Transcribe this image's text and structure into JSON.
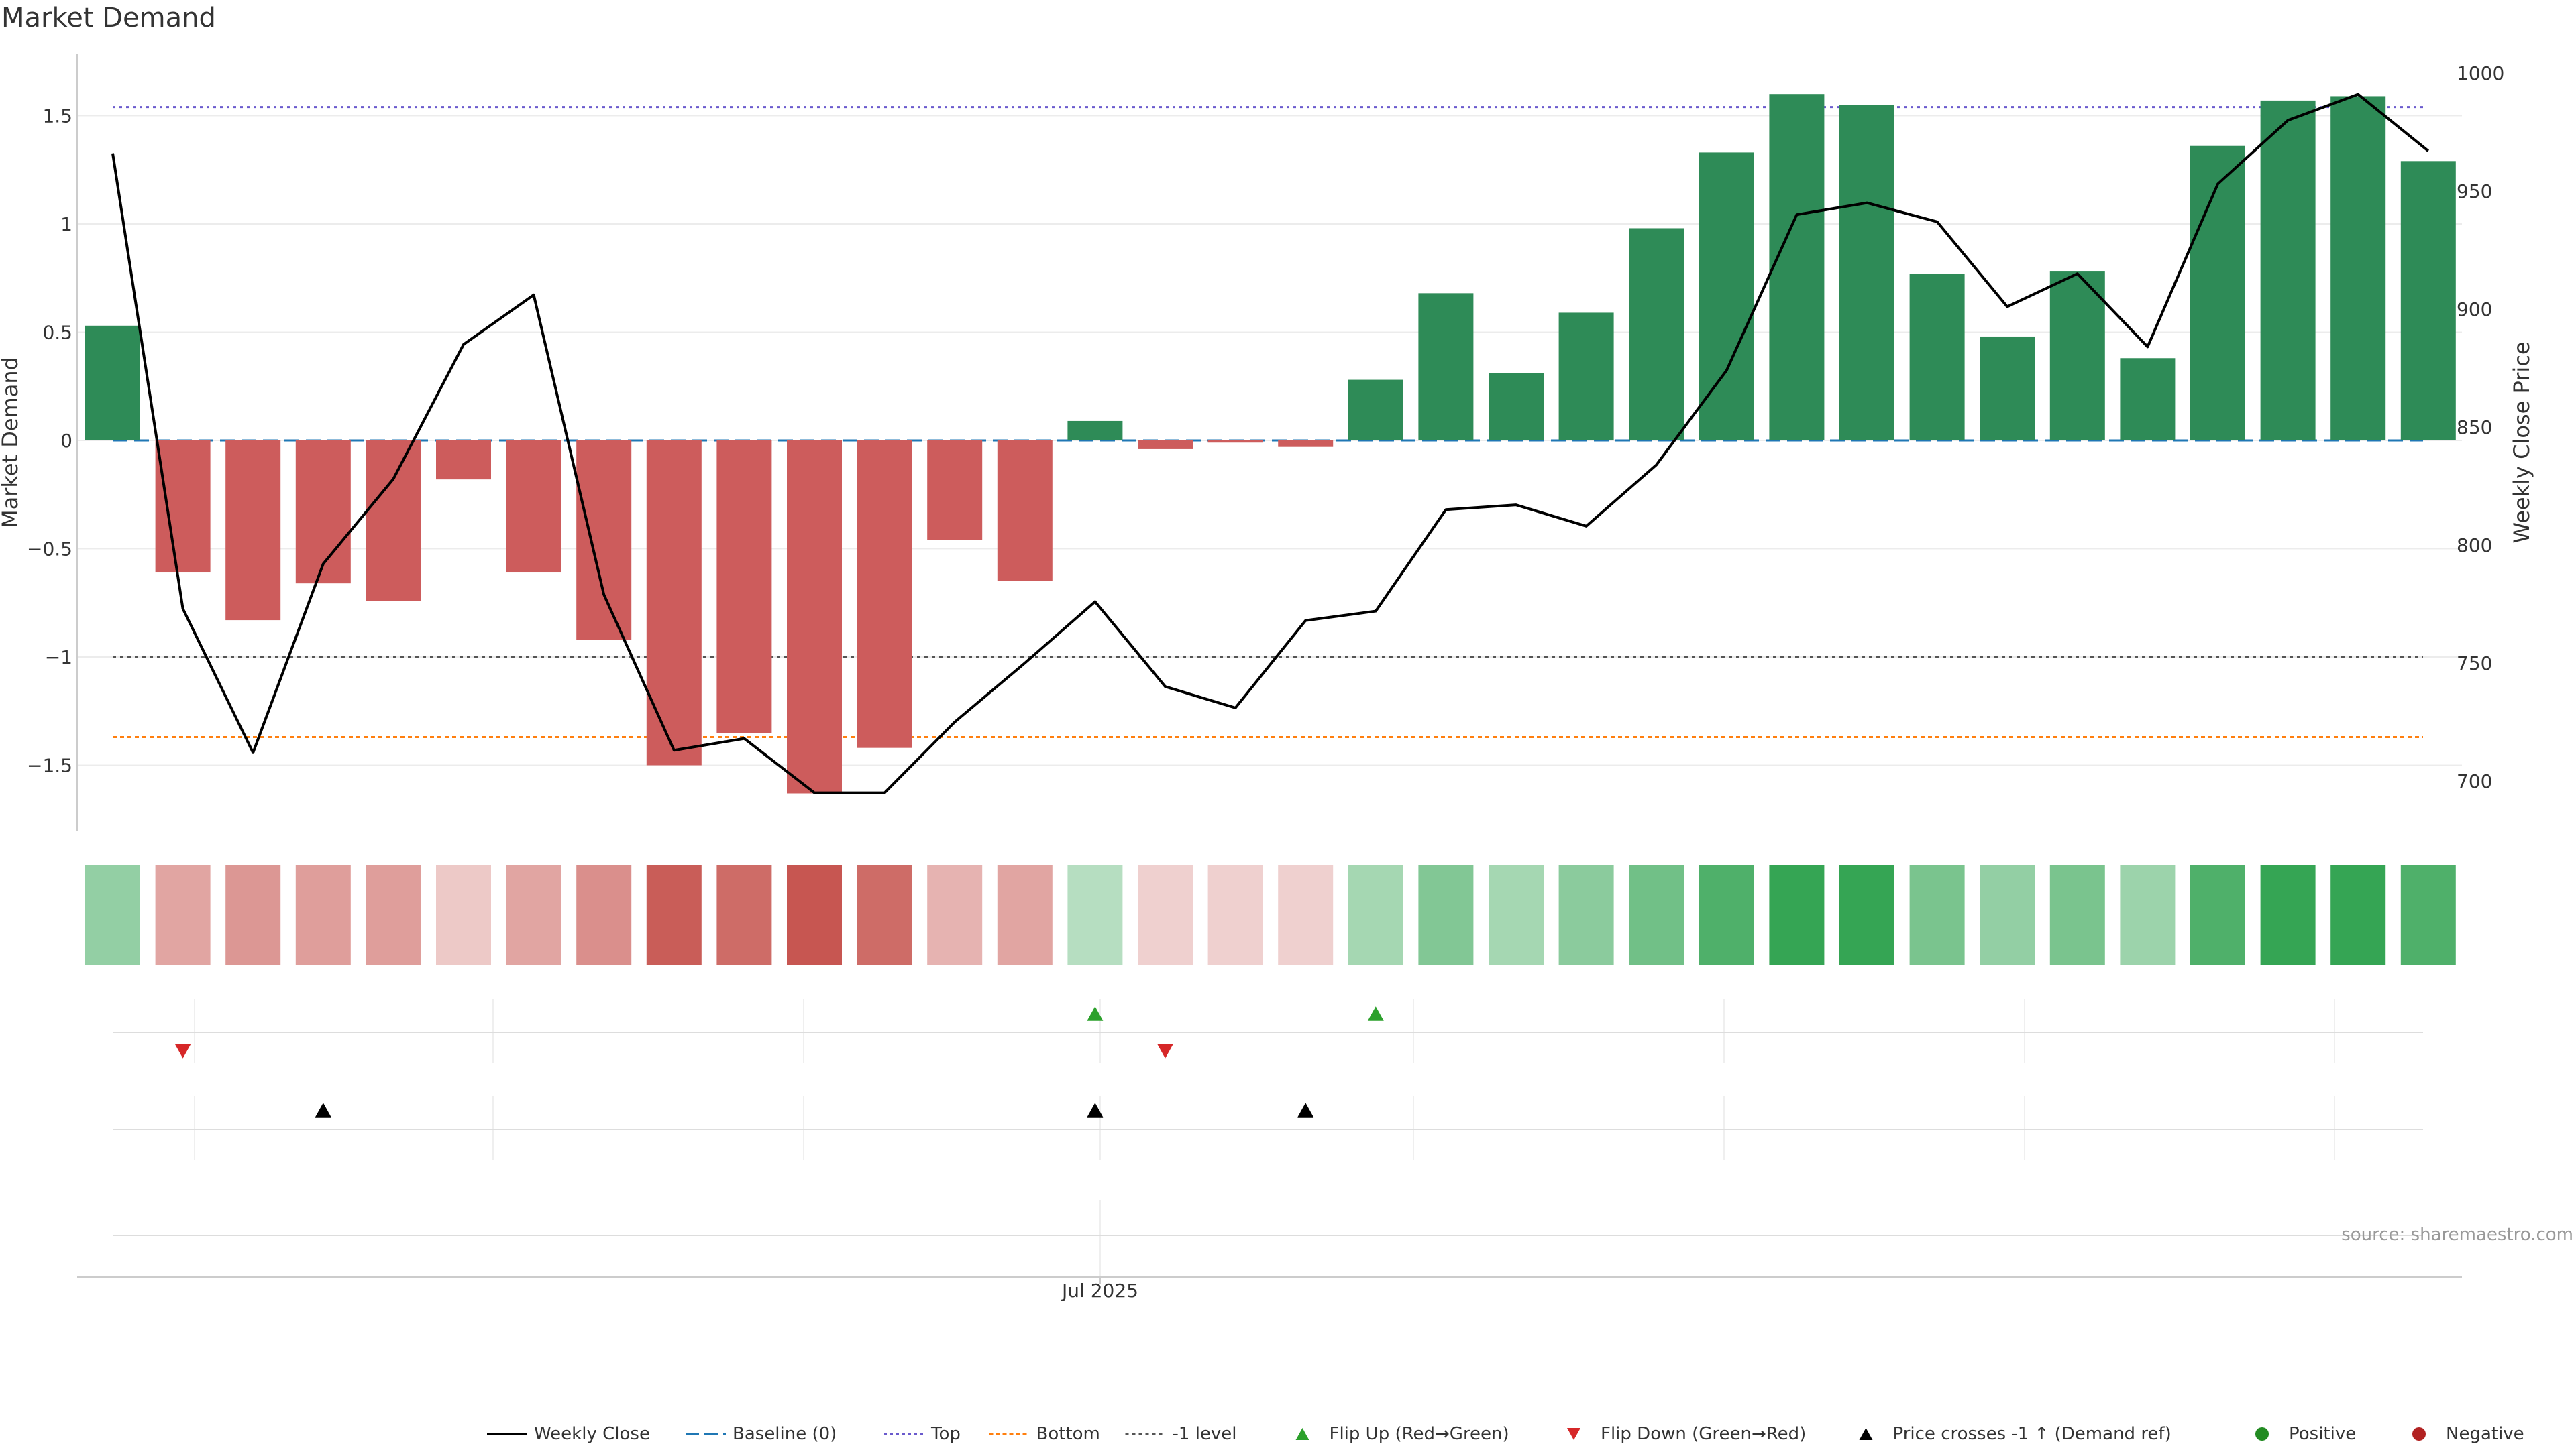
{
  "chart_data": {
    "type": "bar",
    "title": "Market Demand",
    "ylabel_left": "Market Demand",
    "ylabel_right": "Weekly Close Price",
    "ylim_left": [
      -1.8,
      1.78
    ],
    "ylim_right": [
      681,
      1015
    ],
    "yticks_left": [
      {
        "value": 1.5,
        "label": "1.5"
      },
      {
        "value": 1,
        "label": "1"
      },
      {
        "value": 0.5,
        "label": "0.5"
      },
      {
        "value": 0,
        "label": "0"
      },
      {
        "value": -0.5,
        "label": "−0.5"
      },
      {
        "value": -1,
        "label": "−1"
      },
      {
        "value": -1.5,
        "label": "−1.5"
      }
    ],
    "yticks_right": [
      {
        "value": 1000,
        "label": "1000"
      },
      {
        "value": 950,
        "label": "950"
      },
      {
        "value": 900,
        "label": "900"
      },
      {
        "value": 850,
        "label": "850"
      },
      {
        "value": 800,
        "label": "800"
      },
      {
        "value": 750,
        "label": "750"
      },
      {
        "value": 700,
        "label": "700"
      }
    ],
    "reference_lines": {
      "top": 1.54,
      "bottom": -1.37,
      "minus_one": -1.0,
      "baseline": 0
    },
    "demand": [
      0.53,
      -0.61,
      -0.83,
      -0.66,
      -0.74,
      -0.18,
      -0.61,
      -0.92,
      -1.5,
      -1.35,
      -1.63,
      -1.42,
      -0.46,
      -0.65,
      0.09,
      -0.04,
      -0.01,
      -0.03,
      0.28,
      0.68,
      0.31,
      0.59,
      0.98,
      1.33,
      1.6,
      1.55,
      0.77,
      0.48,
      0.78,
      0.38,
      1.36,
      1.57,
      1.59,
      1.29
    ],
    "weekly_close": [
      966,
      773,
      712,
      792,
      828,
      885,
      906,
      779,
      713,
      718,
      695,
      695,
      725,
      750,
      776,
      740,
      731,
      768,
      772,
      815,
      817,
      808,
      834,
      874,
      940,
      945,
      937,
      901,
      915,
      884,
      953,
      980,
      991,
      967
    ],
    "intensity_strip": [
      0.45,
      -0.45,
      -0.55,
      -0.5,
      -0.5,
      -0.2,
      -0.45,
      -0.6,
      -0.95,
      -0.85,
      -1.0,
      -0.85,
      -0.35,
      -0.45,
      0.25,
      -0.15,
      -0.15,
      -0.15,
      0.35,
      0.55,
      0.35,
      0.5,
      0.65,
      0.85,
      1.0,
      1.0,
      0.6,
      0.45,
      0.6,
      0.4,
      0.85,
      1.0,
      1.0,
      0.85
    ],
    "flip_up_weeks": [
      14,
      18
    ],
    "flip_down_weeks": [
      1,
      15
    ],
    "price_cross_weeks": [
      3,
      14,
      17
    ],
    "xtick": {
      "label": "Jul 2025",
      "week": 14
    },
    "source": "source: sharemaestro.com",
    "colors": {
      "positive_bar": "#2e8b57",
      "negative_bar": "#cd5c5c",
      "line": "#000000",
      "baseline": "#1f77b4",
      "top": "#6a5acd",
      "bottom": "#ff7f0e",
      "minus_one": "#555555",
      "flip_up": "#2ca02c",
      "flip_down": "#d62728",
      "cross": "#000000",
      "positive_dot": "#228b22",
      "negative_dot": "#b22222"
    },
    "legend": [
      {
        "key": "close",
        "label": "Weekly Close"
      },
      {
        "key": "baseline",
        "label": "Baseline (0)"
      },
      {
        "key": "top",
        "label": "Top"
      },
      {
        "key": "bottom",
        "label": "Bottom"
      },
      {
        "key": "minus1",
        "label": "-1 level"
      },
      {
        "key": "flipup",
        "label": "Flip Up (Red→Green)"
      },
      {
        "key": "flipdown",
        "label": "Flip Down (Green→Red)"
      },
      {
        "key": "cross",
        "label": "Price crosses -1 ↑ (Demand ref)"
      },
      {
        "key": "positive",
        "label": "Positive"
      },
      {
        "key": "negative",
        "label": "Negative"
      }
    ]
  }
}
